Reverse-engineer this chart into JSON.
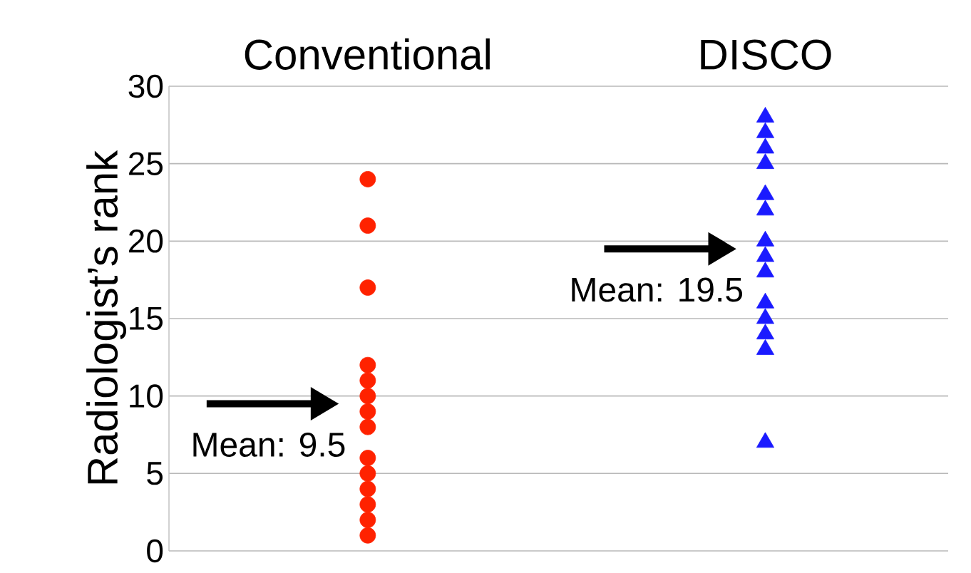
{
  "chart_data": {
    "type": "scatter",
    "categories": [
      "Conventional",
      "DISCO"
    ],
    "ylabel": "Radiologist’s rank",
    "ylim": [
      0,
      30
    ],
    "yticks": [
      0,
      5,
      10,
      15,
      20,
      25,
      30
    ],
    "grid": "y",
    "series": [
      {
        "color": "#ff2200",
        "marker": "circle",
        "x": [
          "Conventional",
          "Conventional",
          "Conventional",
          "Conventional",
          "Conventional",
          "Conventional",
          "Conventional",
          "Conventional",
          "Conventional",
          "Conventional",
          "Conventional",
          "Conventional",
          "Conventional",
          "Conventional"
        ],
        "values": [
          1,
          2,
          3,
          4,
          5,
          6,
          8,
          9,
          10,
          11,
          12,
          17,
          21,
          24
        ]
      },
      {
        "color": "#1a1aff",
        "marker": "triangle",
        "x": [
          "DISCO",
          "DISCO",
          "DISCO",
          "DISCO",
          "DISCO",
          "DISCO",
          "DISCO",
          "DISCO",
          "DISCO",
          "DISCO",
          "DISCO",
          "DISCO",
          "DISCO",
          "DISCO"
        ],
        "values": [
          7,
          13,
          14,
          15,
          16,
          18,
          19,
          20,
          22,
          23,
          25,
          26,
          27,
          28
        ]
      }
    ],
    "annotations": [
      {
        "text": "Mean: 9.5",
        "x": "Conventional",
        "y": 9.5
      },
      {
        "text": "Mean: 19.5",
        "x": "DISCO",
        "y": 19.5
      }
    ]
  }
}
